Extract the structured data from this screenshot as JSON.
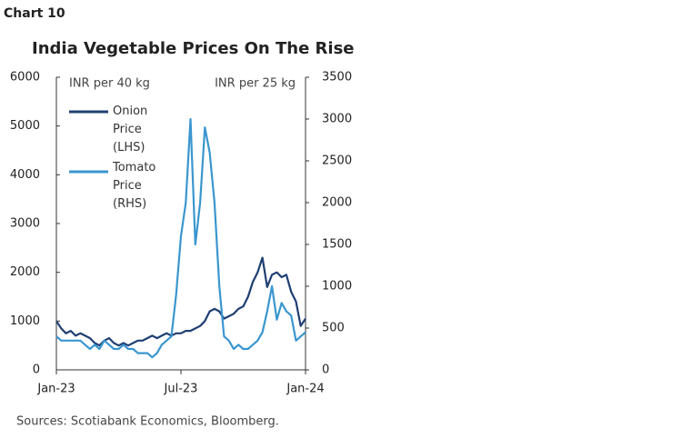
{
  "header": "Chart 10",
  "footer": "Sources: Scotiabank Economics, Bloomberg.",
  "chart_data": {
    "type": "line",
    "title": "India Vegetable Prices On The Rise",
    "y_label": "INR per 40 kg",
    "y2_label": "INR per 25 kg",
    "categories": [
      "Jan-23",
      null,
      null,
      null,
      null,
      null,
      null,
      null,
      null,
      null,
      null,
      null,
      null,
      null,
      null,
      null,
      null,
      null,
      null,
      null,
      null,
      null,
      null,
      null,
      null,
      null,
      "Jul-23",
      null,
      null,
      null,
      null,
      null,
      null,
      null,
      null,
      null,
      null,
      null,
      null,
      null,
      null,
      null,
      null,
      null,
      null,
      null,
      null,
      null,
      null,
      null,
      null,
      null,
      "Jan-24"
    ],
    "ylim": [
      0,
      6000
    ],
    "yticks": [
      0,
      1000,
      2000,
      3000,
      4000,
      5000,
      6000
    ],
    "y2lim": [
      0,
      3500
    ],
    "y2ticks": [
      0,
      500,
      1000,
      1500,
      2000,
      2500,
      3000,
      3500
    ],
    "legend": "upper left",
    "series": [
      {
        "name": "Onion Price (LHS)",
        "color": "#1f3f73",
        "values": [
          1000,
          850,
          750,
          800,
          700,
          750,
          700,
          650,
          550,
          500,
          600,
          650,
          550,
          500,
          550,
          500,
          550,
          600,
          600,
          650,
          700,
          650,
          700,
          750,
          700,
          750,
          750,
          800,
          800,
          850,
          900,
          1000,
          1200,
          1250,
          1200,
          1050,
          1100,
          1150,
          1250,
          1300,
          1500,
          1800,
          2000,
          2300,
          1700,
          1950,
          2000,
          1900,
          1950,
          1600,
          1400,
          900,
          1050
        ]
      },
      {
        "name": "Tomato Price (RHS)",
        "color": "#3a96cf",
        "axis": "y2",
        "values": [
          400,
          350,
          350,
          350,
          350,
          350,
          300,
          250,
          300,
          250,
          350,
          300,
          250,
          250,
          300,
          250,
          250,
          200,
          200,
          200,
          150,
          200,
          300,
          350,
          400,
          900,
          1600,
          2000,
          3000,
          1500,
          2000,
          2900,
          2600,
          2000,
          1000,
          400,
          350,
          250,
          300,
          250,
          250,
          300,
          350,
          450,
          700,
          1000,
          600,
          800,
          700,
          650,
          350,
          400,
          450
        ]
      }
    ]
  }
}
